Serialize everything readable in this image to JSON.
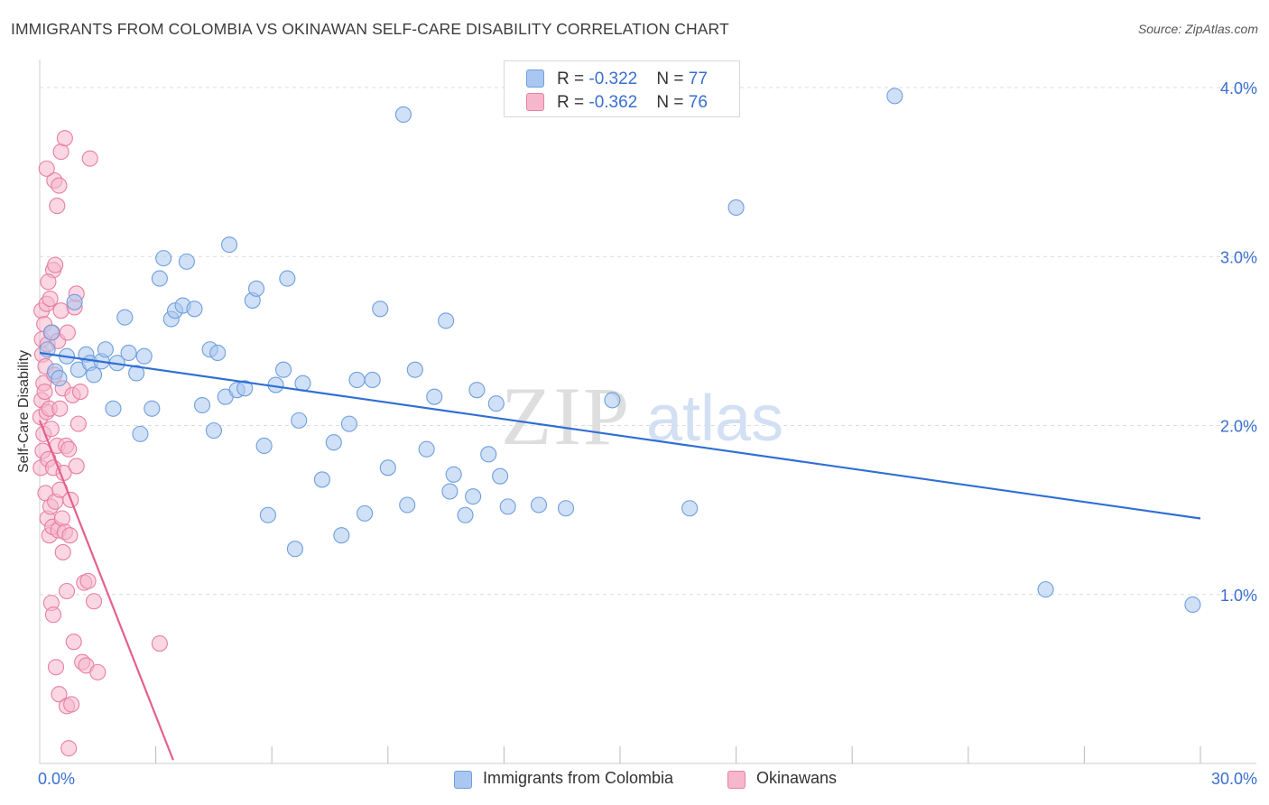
{
  "title": "IMMIGRANTS FROM COLOMBIA VS OKINAWAN SELF-CARE DISABILITY CORRELATION CHART",
  "source": "Source: ZipAtlas.com",
  "watermark": {
    "zip": "ZIP",
    "atlas": "atlas"
  },
  "legend_top": [
    {
      "r_label": "R = ",
      "r_value": "-0.322",
      "n_label": "N = ",
      "n_value": "77"
    },
    {
      "r_label": "R = ",
      "r_value": "-0.362",
      "n_label": "N = ",
      "n_value": "76"
    }
  ],
  "legend_bottom": [
    "Immigrants from Colombia",
    "Okinawans"
  ],
  "colors": {
    "blue_fill": "#a9c7f0",
    "blue_stroke": "#6f9fdc",
    "blue_line": "#2f6fd3",
    "pink_fill": "#f6b7cc",
    "pink_stroke": "#e87fa2",
    "pink_line": "#e4608e",
    "tick_label": "#3a6fd0",
    "grid": "#dcdcdc"
  },
  "chart_data": {
    "type": "scatter",
    "title": "IMMIGRANTS FROM COLOMBIA VS OKINAWAN SELF-CARE DISABILITY CORRELATION CHART",
    "xlabel": "",
    "ylabel": "Self-Care Disability",
    "xlim": [
      0,
      30
    ],
    "ylim": [
      0,
      4.2
    ],
    "x_tick_labels": [
      "0.0%",
      "30.0%"
    ],
    "y_ticks": [
      1.0,
      2.0,
      3.0,
      4.0
    ],
    "y_tick_labels": [
      "1.0%",
      "2.0%",
      "3.0%",
      "4.0%"
    ],
    "grid": true,
    "legend_position": "top-center",
    "series": [
      {
        "name": "Immigrants from Colombia",
        "R": -0.322,
        "N": 77,
        "trend": {
          "x": [
            0.0,
            30.0
          ],
          "y": [
            2.43,
            1.45
          ]
        },
        "points": [
          [
            0.2,
            2.45
          ],
          [
            0.3,
            2.55
          ],
          [
            0.4,
            2.32
          ],
          [
            0.5,
            2.28
          ],
          [
            0.7,
            2.41
          ],
          [
            0.9,
            2.73
          ],
          [
            1.0,
            2.33
          ],
          [
            1.2,
            2.42
          ],
          [
            1.3,
            2.37
          ],
          [
            1.4,
            2.3
          ],
          [
            1.6,
            2.38
          ],
          [
            1.7,
            2.45
          ],
          [
            1.9,
            2.1
          ],
          [
            2.0,
            2.37
          ],
          [
            2.2,
            2.64
          ],
          [
            2.3,
            2.43
          ],
          [
            2.5,
            2.31
          ],
          [
            2.6,
            1.95
          ],
          [
            2.7,
            2.41
          ],
          [
            2.9,
            2.1
          ],
          [
            3.1,
            2.87
          ],
          [
            3.2,
            2.99
          ],
          [
            3.4,
            2.63
          ],
          [
            3.5,
            2.68
          ],
          [
            3.7,
            2.71
          ],
          [
            3.8,
            2.97
          ],
          [
            4.0,
            2.69
          ],
          [
            4.2,
            2.12
          ],
          [
            4.4,
            2.45
          ],
          [
            4.5,
            1.97
          ],
          [
            4.6,
            2.43
          ],
          [
            4.8,
            2.17
          ],
          [
            4.9,
            3.07
          ],
          [
            5.1,
            2.21
          ],
          [
            5.3,
            2.22
          ],
          [
            5.5,
            2.74
          ],
          [
            5.6,
            2.81
          ],
          [
            5.8,
            1.88
          ],
          [
            5.9,
            1.47
          ],
          [
            6.1,
            2.24
          ],
          [
            6.3,
            2.33
          ],
          [
            6.4,
            2.87
          ],
          [
            6.6,
            1.27
          ],
          [
            6.7,
            2.03
          ],
          [
            6.8,
            2.25
          ],
          [
            7.3,
            1.68
          ],
          [
            7.6,
            1.9
          ],
          [
            7.8,
            1.35
          ],
          [
            8.0,
            2.01
          ],
          [
            8.2,
            2.27
          ],
          [
            8.4,
            1.48
          ],
          [
            8.6,
            2.27
          ],
          [
            8.8,
            2.69
          ],
          [
            9.0,
            1.75
          ],
          [
            9.4,
            3.84
          ],
          [
            9.5,
            1.53
          ],
          [
            9.7,
            2.33
          ],
          [
            10.0,
            1.86
          ],
          [
            10.2,
            2.17
          ],
          [
            10.5,
            2.62
          ],
          [
            10.6,
            1.61
          ],
          [
            10.7,
            1.71
          ],
          [
            11.0,
            1.47
          ],
          [
            11.2,
            1.58
          ],
          [
            11.3,
            2.21
          ],
          [
            11.6,
            1.83
          ],
          [
            11.8,
            2.13
          ],
          [
            11.9,
            1.7
          ],
          [
            12.1,
            1.52
          ],
          [
            12.9,
            1.53
          ],
          [
            13.6,
            1.51
          ],
          [
            14.8,
            2.15
          ],
          [
            16.8,
            1.51
          ],
          [
            18.0,
            3.29
          ],
          [
            22.1,
            3.95
          ],
          [
            26.0,
            1.03
          ],
          [
            29.8,
            0.94
          ]
        ]
      },
      {
        "name": "Okinawans",
        "R": -0.362,
        "N": 76,
        "trend": {
          "x": [
            0.0,
            3.45
          ],
          "y": [
            2.03,
            0.02
          ]
        },
        "points": [
          [
            0.02,
            2.05
          ],
          [
            0.03,
            1.75
          ],
          [
            0.05,
            2.15
          ],
          [
            0.05,
            2.68
          ],
          [
            0.06,
            2.51
          ],
          [
            0.07,
            2.42
          ],
          [
            0.08,
            1.85
          ],
          [
            0.1,
            2.25
          ],
          [
            0.1,
            1.95
          ],
          [
            0.12,
            2.6
          ],
          [
            0.13,
            2.2
          ],
          [
            0.15,
            1.6
          ],
          [
            0.15,
            2.35
          ],
          [
            0.18,
            2.08
          ],
          [
            0.18,
            2.72
          ],
          [
            0.2,
            1.45
          ],
          [
            0.2,
            2.48
          ],
          [
            0.22,
            1.8
          ],
          [
            0.25,
            2.1
          ],
          [
            0.25,
            1.35
          ],
          [
            0.27,
            2.75
          ],
          [
            0.28,
            1.52
          ],
          [
            0.3,
            0.95
          ],
          [
            0.3,
            1.98
          ],
          [
            0.32,
            2.55
          ],
          [
            0.33,
            1.4
          ],
          [
            0.35,
            1.75
          ],
          [
            0.35,
            2.92
          ],
          [
            0.38,
            3.45
          ],
          [
            0.38,
            2.3
          ],
          [
            0.4,
            1.55
          ],
          [
            0.4,
            2.95
          ],
          [
            0.42,
            0.57
          ],
          [
            0.45,
            3.3
          ],
          [
            0.45,
            1.88
          ],
          [
            0.47,
            2.5
          ],
          [
            0.48,
            1.38
          ],
          [
            0.5,
            0.41
          ],
          [
            0.5,
            3.42
          ],
          [
            0.52,
            2.1
          ],
          [
            0.52,
            1.62
          ],
          [
            0.55,
            3.62
          ],
          [
            0.55,
            2.68
          ],
          [
            0.58,
            1.45
          ],
          [
            0.6,
            2.22
          ],
          [
            0.6,
            1.25
          ],
          [
            0.62,
            1.72
          ],
          [
            0.65,
            1.37
          ],
          [
            0.65,
            3.7
          ],
          [
            0.68,
            1.88
          ],
          [
            0.7,
            1.02
          ],
          [
            0.7,
            0.34
          ],
          [
            0.72,
            2.55
          ],
          [
            0.75,
            1.86
          ],
          [
            0.75,
            0.09
          ],
          [
            0.78,
            1.35
          ],
          [
            0.8,
            1.56
          ],
          [
            0.82,
            0.35
          ],
          [
            0.85,
            2.18
          ],
          [
            0.88,
            0.72
          ],
          [
            0.9,
            2.7
          ],
          [
            0.95,
            2.78
          ],
          [
            0.95,
            1.76
          ],
          [
            1.0,
            2.01
          ],
          [
            1.05,
            2.2
          ],
          [
            1.1,
            0.6
          ],
          [
            1.15,
            1.07
          ],
          [
            1.2,
            0.58
          ],
          [
            1.25,
            1.08
          ],
          [
            1.3,
            3.58
          ],
          [
            1.4,
            0.96
          ],
          [
            1.5,
            0.54
          ],
          [
            3.1,
            0.71
          ],
          [
            0.18,
            3.52
          ],
          [
            0.22,
            2.85
          ],
          [
            0.35,
            0.88
          ]
        ]
      }
    ]
  }
}
